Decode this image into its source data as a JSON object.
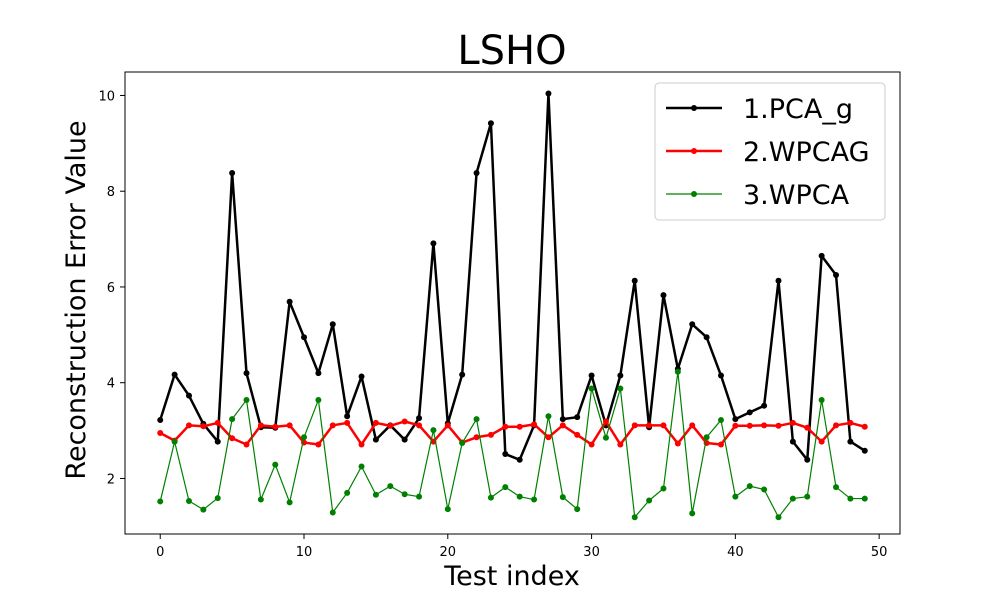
{
  "chart_data": {
    "type": "line",
    "title": "LSHO",
    "xlabel": "Test index",
    "ylabel": "Reconstruction Error Value",
    "xlim": [
      -2.45,
      51.45
    ],
    "ylim": [
      0.84,
      10.49
    ],
    "xticks": [
      0,
      10,
      20,
      30,
      40,
      50
    ],
    "yticks": [
      2,
      4,
      6,
      8,
      10
    ],
    "grid": false,
    "legend_position": "top-right",
    "x": [
      0,
      1,
      2,
      3,
      4,
      5,
      6,
      7,
      8,
      9,
      10,
      11,
      12,
      13,
      14,
      15,
      16,
      17,
      18,
      19,
      20,
      21,
      22,
      23,
      24,
      25,
      26,
      27,
      28,
      29,
      30,
      31,
      32,
      33,
      34,
      35,
      36,
      37,
      38,
      39,
      40,
      41,
      42,
      43,
      44,
      45,
      46,
      47,
      48,
      49
    ],
    "series": [
      {
        "name": "1.PCA_g",
        "color": "#000000",
        "line_width": 2.5,
        "values": [
          3.22,
          4.17,
          3.73,
          3.14,
          2.77,
          8.38,
          4.2,
          3.07,
          3.06,
          5.69,
          4.95,
          4.2,
          5.22,
          3.3,
          4.13,
          2.81,
          3.11,
          2.81,
          3.26,
          6.91,
          3.15,
          4.17,
          8.38,
          9.42,
          2.51,
          2.39,
          3.11,
          10.04,
          3.24,
          3.28,
          4.15,
          3.11,
          4.15,
          6.13,
          3.07,
          5.83,
          4.29,
          5.22,
          4.95,
          4.15,
          3.24,
          3.38,
          3.52,
          6.13,
          2.77,
          2.39,
          6.65,
          6.25,
          2.77,
          2.58
        ]
      },
      {
        "name": "2.WPCAG",
        "color": "#ff0000",
        "line_width": 2.5,
        "values": [
          2.95,
          2.79,
          3.11,
          3.09,
          3.16,
          2.84,
          2.71,
          3.11,
          3.08,
          3.11,
          2.75,
          2.71,
          3.11,
          3.16,
          2.71,
          3.16,
          3.1,
          3.19,
          3.11,
          2.77,
          3.11,
          2.75,
          2.86,
          2.91,
          3.08,
          3.08,
          3.13,
          2.86,
          3.11,
          2.91,
          2.71,
          3.19,
          2.71,
          3.11,
          3.11,
          3.11,
          2.73,
          3.11,
          2.74,
          2.71,
          3.1,
          3.1,
          3.11,
          3.1,
          3.16,
          3.06,
          2.77,
          3.11,
          3.16,
          3.08
        ]
      },
      {
        "name": "3.WPCA",
        "color": "#008000",
        "line_width": 1.2,
        "values": [
          1.52,
          2.77,
          1.53,
          1.35,
          1.59,
          3.24,
          3.64,
          1.56,
          2.29,
          1.5,
          2.86,
          3.64,
          1.29,
          1.7,
          2.25,
          1.66,
          1.84,
          1.67,
          1.62,
          3.01,
          1.36,
          2.74,
          3.24,
          1.6,
          1.82,
          1.62,
          1.56,
          3.3,
          1.61,
          1.36,
          3.88,
          2.85,
          3.88,
          1.19,
          1.54,
          1.79,
          4.23,
          1.27,
          2.86,
          3.22,
          1.62,
          1.84,
          1.77,
          1.19,
          1.58,
          1.62,
          3.64,
          1.82,
          1.58,
          1.58
        ]
      }
    ]
  }
}
